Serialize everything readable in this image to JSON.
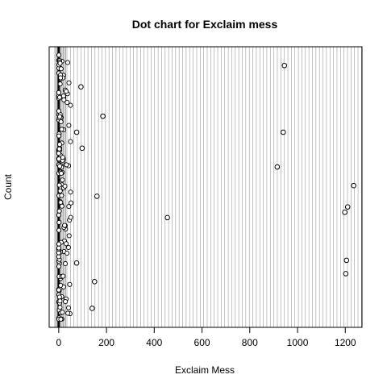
{
  "chart_data": {
    "type": "scatter",
    "title": "Dot chart for Exclaim mess",
    "xlabel": "Exclaim Mess",
    "ylabel": "Count",
    "xlim": [
      -40,
      1270
    ],
    "xticks": [
      0,
      200,
      400,
      600,
      800,
      1000,
      1200
    ],
    "grid": "vertical lines at every dot position (dot chart)",
    "series": [
      {
        "values": [
          {
            "x": 945,
            "row": 0.04
          },
          {
            "x": 93,
            "row": 0.12
          },
          {
            "x": 185,
            "row": 0.23
          },
          {
            "x": 940,
            "row": 0.29
          },
          {
            "x": 75,
            "row": 0.29
          },
          {
            "x": 98,
            "row": 0.35
          },
          {
            "x": 915,
            "row": 0.42
          },
          {
            "x": 1235,
            "row": 0.49
          },
          {
            "x": 160,
            "row": 0.53
          },
          {
            "x": 1210,
            "row": 0.57
          },
          {
            "x": 1198,
            "row": 0.59
          },
          {
            "x": 455,
            "row": 0.61
          },
          {
            "x": 1205,
            "row": 0.77
          },
          {
            "x": 75,
            "row": 0.78
          },
          {
            "x": 1202,
            "row": 0.82
          },
          {
            "x": 150,
            "row": 0.85
          },
          {
            "x": 140,
            "row": 0.95
          }
        ]
      }
    ]
  }
}
